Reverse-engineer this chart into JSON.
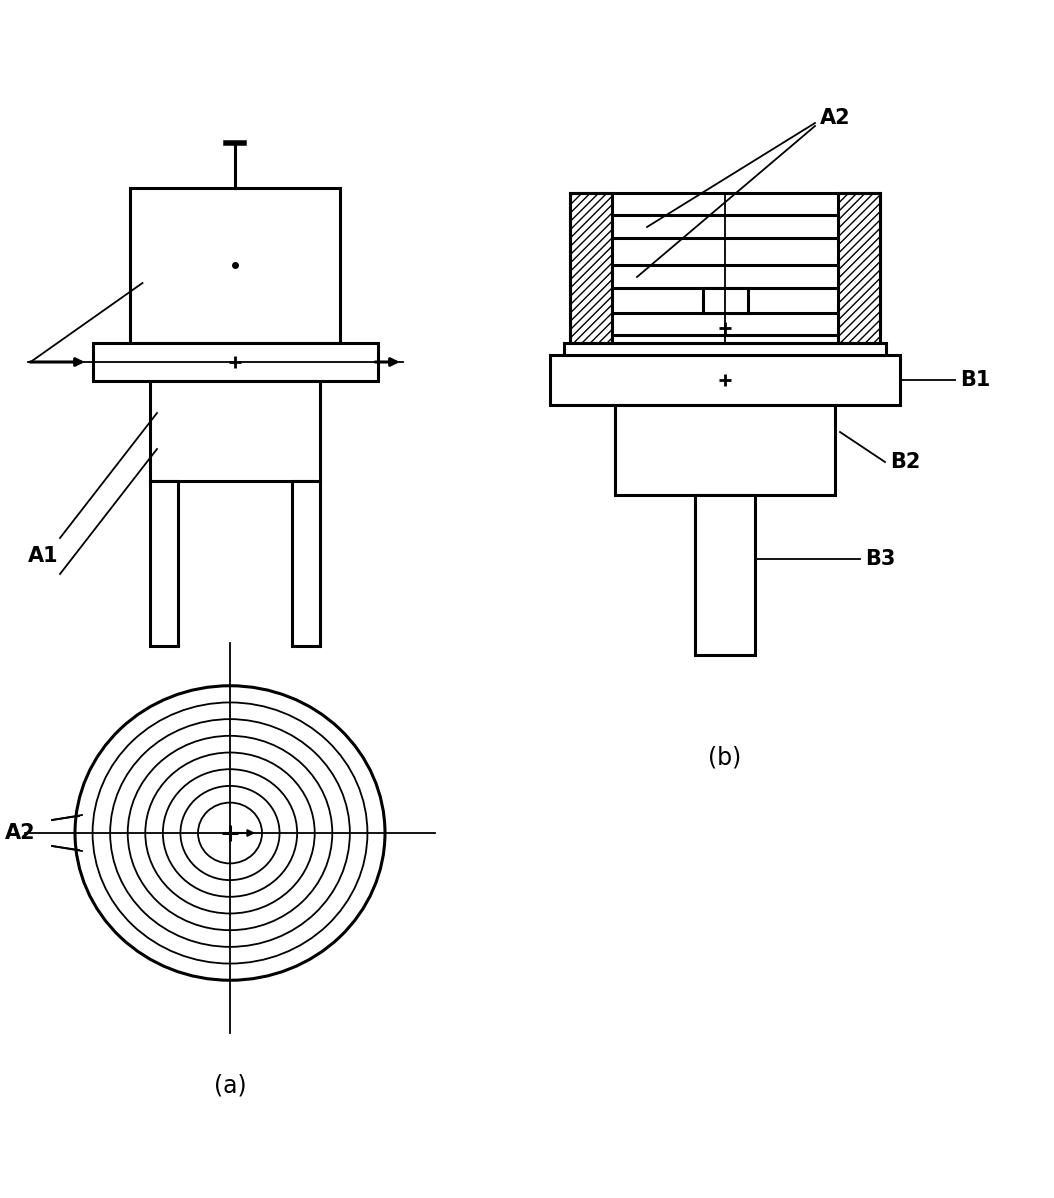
{
  "bg_color": "#ffffff",
  "line_color": "#000000",
  "fig_width": 10.54,
  "fig_height": 11.98,
  "label_A1": "A1",
  "label_A2_left": "A2",
  "label_A2_right": "A2",
  "label_B1": "B1",
  "label_B2": "B2",
  "label_B3": "B3",
  "caption_a": "(a)",
  "caption_b": "(b)"
}
